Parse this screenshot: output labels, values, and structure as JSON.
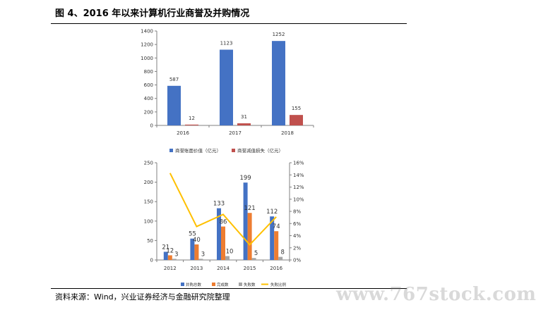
{
  "title": "图 4、2016 年以来计算机行业商誉及并购情况",
  "source": "资料来源：Wind，兴业证券经济与金融研究院整理",
  "watermark": "www.767stock.com",
  "colors": {
    "blue": "#4472C4",
    "red": "#C0504D",
    "orange": "#ED7D31",
    "gray": "#A5A5A5",
    "yellow": "#FFC000",
    "axis": "#808080"
  },
  "chart_data": [
    {
      "type": "bar",
      "categories": [
        "2016",
        "2017",
        "2018"
      ],
      "series": [
        {
          "name": "商誉账面价值（亿元）",
          "color": "#4472C4",
          "values": [
            587,
            1123,
            1252
          ]
        },
        {
          "name": "商誉减值损失（亿元）",
          "color": "#C0504D",
          "values": [
            12,
            31,
            155
          ]
        }
      ],
      "ylim": [
        0,
        1400
      ],
      "yticks": [
        0,
        200,
        400,
        600,
        800,
        1000,
        1200,
        1400
      ],
      "legend": "bottom"
    },
    {
      "type": "bar",
      "categories": [
        "2012",
        "2013",
        "2014",
        "2015",
        "2016"
      ],
      "series": [
        {
          "name": "并购总数",
          "color": "#4472C4",
          "axis": "left",
          "values": [
            21,
            55,
            133,
            199,
            112
          ],
          "labels": [
            "21",
            "55",
            "133",
            "199",
            "112"
          ]
        },
        {
          "name": "完成数",
          "color": "#ED7D31",
          "axis": "left",
          "values": [
            12,
            40,
            86,
            121,
            74
          ],
          "labels": [
            "12",
            "40",
            "86",
            "121",
            "74"
          ]
        },
        {
          "name": "失败数",
          "color": "#A5A5A5",
          "axis": "left",
          "values": [
            3,
            3,
            10,
            5,
            8
          ],
          "labels": [
            "3",
            "3",
            "10",
            "5",
            "8"
          ]
        },
        {
          "name": "失败比例",
          "color": "#FFC000",
          "axis": "right",
          "type": "line",
          "values": [
            14.3,
            5.5,
            7.5,
            2.5,
            7.1
          ]
        }
      ],
      "ylim": [
        0,
        250
      ],
      "yticks": [
        0,
        50,
        100,
        150,
        200,
        250
      ],
      "y2lim": [
        0,
        16
      ],
      "y2ticks": [
        "0%",
        "2%",
        "4%",
        "6%",
        "8%",
        "10%",
        "12%",
        "14%",
        "16%"
      ],
      "legend": "bottom"
    }
  ]
}
